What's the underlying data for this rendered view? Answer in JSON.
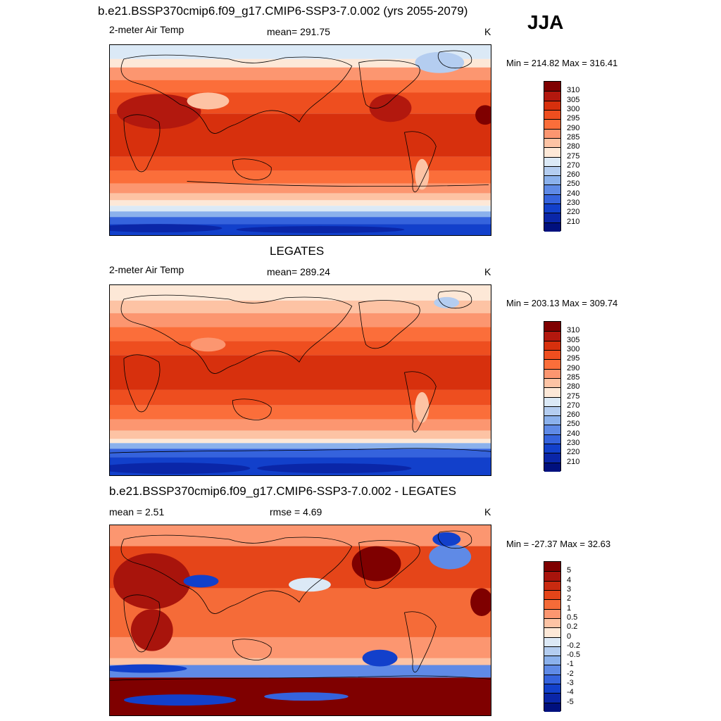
{
  "header": {
    "title": "b.e21.BSSP370cmip6.f09_g17.CMIP6-SSP3-7.0.002 (yrs 2055-2079)",
    "season": "JJA"
  },
  "panel1": {
    "label": "2-meter Air Temp",
    "mean": "mean= 291.75",
    "units": "K",
    "minmax": "Min = 214.82 Max = 316.41"
  },
  "panel2": {
    "title": "LEGATES",
    "label": "2-meter Air Temp",
    "mean": "mean= 289.24",
    "units": "K",
    "minmax": "Min = 203.13 Max = 309.74"
  },
  "panel3": {
    "title": "b.e21.BSSP370cmip6.f09_g17.CMIP6-SSP3-7.0.002 - LEGATES",
    "mean": "mean =   2.51",
    "rmse": "rmse =   4.69",
    "units": "K",
    "minmax": "Min = -27.37 Max =  32.63"
  },
  "legend_temp": {
    "labels": [
      "310",
      "305",
      "300",
      "295",
      "290",
      "285",
      "280",
      "275",
      "270",
      "260",
      "250",
      "240",
      "230",
      "220",
      "210"
    ],
    "colors": [
      "#7f0000",
      "#b2180e",
      "#d7300d",
      "#ee4e1f",
      "#fb6e3a",
      "#fc9670",
      "#fdc3a4",
      "#fde8d7",
      "#dbe9f6",
      "#b4cdf0",
      "#8bb1ec",
      "#5f8ae6",
      "#3563dd",
      "#1240cb",
      "#0a26a8",
      "#00107e"
    ]
  },
  "legend_diff": {
    "labels": [
      "5",
      "4",
      "3",
      "2",
      "1",
      "0.5",
      "0.2",
      "0",
      "-0.2",
      "-0.5",
      "-1",
      "-2",
      "-3",
      "-4",
      "-5"
    ],
    "colors": [
      "#7f0000",
      "#a8140c",
      "#c92a10",
      "#e54519",
      "#f56b38",
      "#fc9670",
      "#fdc3a4",
      "#fde8d7",
      "#dce9f6",
      "#b4cdf0",
      "#8bb1ec",
      "#5f8ae6",
      "#3563dd",
      "#1240cb",
      "#0a26a8",
      "#00107e"
    ]
  }
}
